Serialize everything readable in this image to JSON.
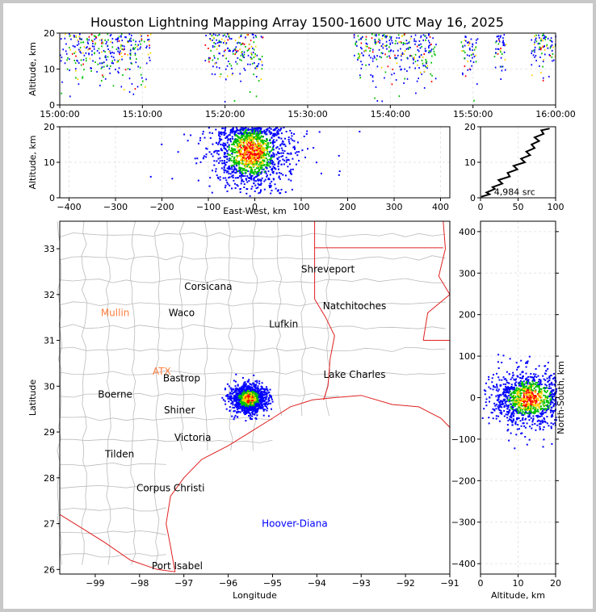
{
  "title": "Houston Lightning Mapping Array 1500-1600 UTC May 16, 2025",
  "colors": {
    "cold": "#0000ff",
    "mid1": "#00c000",
    "mid2": "#ffd400",
    "hot": "#ff0000",
    "border": "#e02020",
    "county": "#bbbbbb"
  },
  "chart_data": [
    {
      "id": "time-altitude",
      "type": "scatter",
      "ylabel": "Altitude, km",
      "xlabel": "",
      "ylim": [
        0,
        20
      ],
      "x_ticks": [
        "15:00:00",
        "15:10:00",
        "15:20:00",
        "15:30:00",
        "15:40:00",
        "15:50:00",
        "16:00:00"
      ],
      "y_ticks": [
        0,
        10,
        20
      ],
      "active_windows_minutes": [
        [
          0,
          6
        ],
        [
          6,
          11
        ],
        [
          17.5,
          24.5
        ],
        [
          35.5,
          45.5
        ],
        [
          48.5,
          50.5
        ],
        [
          52.5,
          54
        ],
        [
          57,
          60
        ]
      ]
    },
    {
      "id": "east-west-altitude",
      "type": "scatter",
      "xlabel": "East-West, km",
      "ylabel": "Altitude, km",
      "xlim": [
        -420,
        420
      ],
      "ylim": [
        0,
        20
      ],
      "x_ticks": [
        -400,
        -300,
        -200,
        -100,
        0,
        100,
        200,
        300,
        400
      ],
      "y_ticks": [
        0,
        10,
        20
      ],
      "cluster_center_km": [
        -10,
        13
      ],
      "cluster_spread_km": [
        40,
        5
      ]
    },
    {
      "id": "altitude-histogram",
      "type": "line",
      "annotation": "4,984 src",
      "xlim": [
        0,
        100
      ],
      "ylim": [
        0,
        20
      ],
      "x_ticks": [
        0,
        50,
        100
      ],
      "y_ticks": [
        0,
        10,
        20
      ],
      "points": [
        [
          5,
          0.3
        ],
        [
          8,
          1
        ],
        [
          12,
          1.5
        ],
        [
          15,
          2.5
        ],
        [
          20,
          3
        ],
        [
          25,
          4
        ],
        [
          28,
          5
        ],
        [
          35,
          6
        ],
        [
          40,
          7
        ],
        [
          45,
          8
        ],
        [
          48,
          9
        ],
        [
          55,
          10
        ],
        [
          58,
          11
        ],
        [
          62,
          12
        ],
        [
          65,
          13
        ],
        [
          68,
          14
        ],
        [
          72,
          15
        ],
        [
          74,
          16
        ],
        [
          76,
          17
        ],
        [
          80,
          18
        ],
        [
          85,
          19
        ],
        [
          88,
          19.5
        ]
      ]
    },
    {
      "id": "plan-view-map",
      "type": "scatter",
      "xlabel": "Longitude",
      "ylabel": "Latitude",
      "xlim": [
        -99.8,
        -91
      ],
      "ylim": [
        25.9,
        33.6
      ],
      "x_ticks": [
        -99,
        -98,
        -97,
        -96,
        -95,
        -94,
        -93,
        -92,
        -91
      ],
      "y_ticks": [
        26,
        27,
        28,
        29,
        30,
        31,
        32,
        33
      ],
      "cluster_center": [
        -95.55,
        29.75
      ],
      "cluster_spread_deg": [
        0.35,
        0.28
      ]
    },
    {
      "id": "altitude-north-south",
      "type": "scatter",
      "xlabel": "Altitude, km",
      "ylabel": "North-South, km",
      "xlim": [
        0,
        20
      ],
      "ylim": [
        -425,
        425
      ],
      "x_ticks": [
        0,
        10,
        20
      ],
      "y_ticks": [
        -400,
        -300,
        -200,
        -100,
        0,
        100,
        200,
        300,
        400
      ],
      "cluster_center_km": [
        12,
        0
      ],
      "cluster_spread_km": [
        5,
        40
      ]
    }
  ],
  "cities": [
    {
      "name": "Shreveport",
      "lon": -93.75,
      "lat": 32.55,
      "color": "#000000"
    },
    {
      "name": "Corsicana",
      "lon": -96.45,
      "lat": 32.17,
      "color": "#000000"
    },
    {
      "name": "Natchitoches",
      "lon": -93.15,
      "lat": 31.75,
      "color": "#000000"
    },
    {
      "name": "Mullin",
      "lon": -98.55,
      "lat": 31.6,
      "color": "#ff8040"
    },
    {
      "name": "Waco",
      "lon": -97.05,
      "lat": 31.6,
      "color": "#000000"
    },
    {
      "name": "Lufkin",
      "lon": -94.75,
      "lat": 31.35,
      "color": "#000000"
    },
    {
      "name": "Lake Charles",
      "lon": -93.15,
      "lat": 30.25,
      "color": "#000000"
    },
    {
      "name": "ATX",
      "lon": -97.5,
      "lat": 30.32,
      "color": "#ff8040"
    },
    {
      "name": "Bastrop",
      "lon": -97.05,
      "lat": 30.17,
      "color": "#000000"
    },
    {
      "name": "Boerne",
      "lon": -98.55,
      "lat": 29.82,
      "color": "#000000"
    },
    {
      "name": "Shiner",
      "lon": -97.1,
      "lat": 29.48,
      "color": "#000000"
    },
    {
      "name": "Victoria",
      "lon": -96.8,
      "lat": 28.88,
      "color": "#000000"
    },
    {
      "name": "Tilden",
      "lon": -98.45,
      "lat": 28.52,
      "color": "#000000"
    },
    {
      "name": "Corpus Christi",
      "lon": -97.3,
      "lat": 27.78,
      "color": "#000000"
    },
    {
      "name": "Hoover-Diana",
      "lon": -94.5,
      "lat": 27.0,
      "color": "#0000ff"
    },
    {
      "name": "Port Isabel",
      "lon": -97.15,
      "lat": 26.08,
      "color": "#000000"
    }
  ]
}
